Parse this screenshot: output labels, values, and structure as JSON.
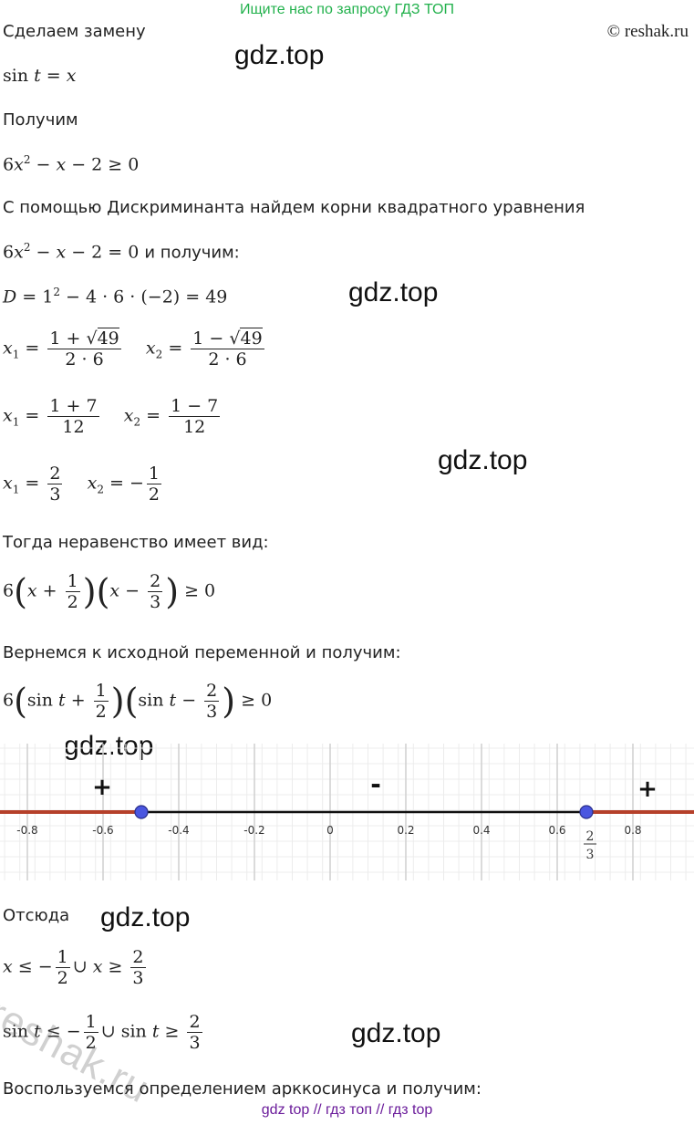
{
  "header": {
    "top_link": "Ищите нас по запросу ГДЗ ТОП",
    "copyright": "© reshak.ru"
  },
  "watermarks": {
    "gdz": "gdz.top",
    "reshak": "reshak.ru"
  },
  "lines": {
    "l1": "Сделаем замену",
    "l3": "Получим",
    "l5": "С помощью Дискриминанта найдем корни квадратного уравнения",
    "l6_tail": "и получим:",
    "l12": "Тогда неравенство имеет вид:",
    "l14": "Вернемся к исходной переменной и получим:",
    "l16": "Отсюда",
    "l19": "Воспользуемся определением арккосинуса и получим:"
  },
  "number_line": {
    "ticks": [
      "-0.8",
      "-0.6",
      "-0.4",
      "-0.2",
      "0",
      "0.2",
      "0.4",
      "0.6",
      "0.8"
    ],
    "signs": [
      "+",
      "-",
      "+"
    ],
    "point_label_num": "2",
    "point_label_den": "3",
    "colors": {
      "solution": "#b5402a",
      "gap": "#111111",
      "point": "#4a56e0",
      "grid": "#d9d9d9"
    }
  },
  "footer": {
    "links": "gdz top  //  гдз топ  //  гдз top"
  }
}
